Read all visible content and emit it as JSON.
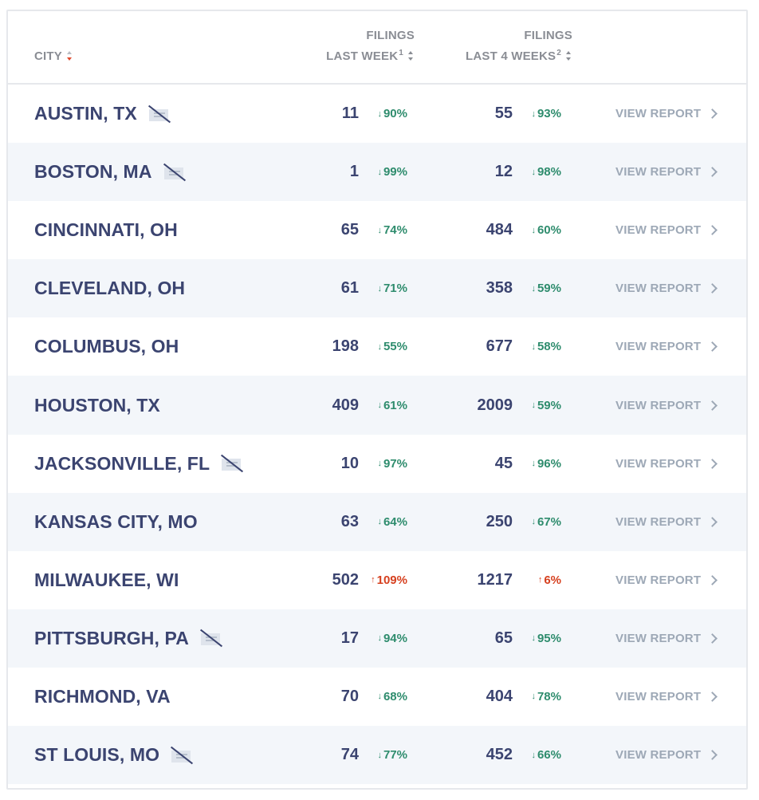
{
  "header": {
    "city_label": "CITY",
    "col1_line1": "FILINGS",
    "col1_line2": "LAST WEEK",
    "col1_sup": "1",
    "col2_line1": "FILINGS",
    "col2_line2": "LAST 4 WEEKS",
    "col2_sup": "2"
  },
  "colors": {
    "city_text": "#3b4470",
    "decrease": "#2e8c6d",
    "increase": "#d6401f",
    "link": "#9da8b6",
    "header_text": "#8a8d94",
    "alt_row": "#f3f6fa"
  },
  "rows": [
    {
      "city": "AUSTIN, TX",
      "no_data_icon": true,
      "last_week": "11",
      "last_week_change": "90%",
      "last_week_dir": "down",
      "last_4_weeks": "55",
      "last_4_weeks_change": "93%",
      "last_4_weeks_dir": "down",
      "link": "VIEW REPORT"
    },
    {
      "city": "BOSTON, MA",
      "no_data_icon": true,
      "last_week": "1",
      "last_week_change": "99%",
      "last_week_dir": "down",
      "last_4_weeks": "12",
      "last_4_weeks_change": "98%",
      "last_4_weeks_dir": "down",
      "link": "VIEW REPORT"
    },
    {
      "city": "CINCINNATI, OH",
      "no_data_icon": false,
      "last_week": "65",
      "last_week_change": "74%",
      "last_week_dir": "down",
      "last_4_weeks": "484",
      "last_4_weeks_change": "60%",
      "last_4_weeks_dir": "down",
      "link": "VIEW REPORT"
    },
    {
      "city": "CLEVELAND, OH",
      "no_data_icon": false,
      "last_week": "61",
      "last_week_change": "71%",
      "last_week_dir": "down",
      "last_4_weeks": "358",
      "last_4_weeks_change": "59%",
      "last_4_weeks_dir": "down",
      "link": "VIEW REPORT"
    },
    {
      "city": "COLUMBUS, OH",
      "no_data_icon": false,
      "last_week": "198",
      "last_week_change": "55%",
      "last_week_dir": "down",
      "last_4_weeks": "677",
      "last_4_weeks_change": "58%",
      "last_4_weeks_dir": "down",
      "link": "VIEW REPORT"
    },
    {
      "city": "HOUSTON, TX",
      "no_data_icon": false,
      "last_week": "409",
      "last_week_change": "61%",
      "last_week_dir": "down",
      "last_4_weeks": "2009",
      "last_4_weeks_change": "59%",
      "last_4_weeks_dir": "down",
      "link": "VIEW REPORT"
    },
    {
      "city": "JACKSONVILLE, FL",
      "no_data_icon": true,
      "last_week": "10",
      "last_week_change": "97%",
      "last_week_dir": "down",
      "last_4_weeks": "45",
      "last_4_weeks_change": "96%",
      "last_4_weeks_dir": "down",
      "link": "VIEW REPORT"
    },
    {
      "city": "KANSAS CITY, MO",
      "no_data_icon": false,
      "last_week": "63",
      "last_week_change": "64%",
      "last_week_dir": "down",
      "last_4_weeks": "250",
      "last_4_weeks_change": "67%",
      "last_4_weeks_dir": "down",
      "link": "VIEW REPORT"
    },
    {
      "city": "MILWAUKEE, WI",
      "no_data_icon": false,
      "last_week": "502",
      "last_week_change": "109%",
      "last_week_dir": "up",
      "last_4_weeks": "1217",
      "last_4_weeks_change": "6%",
      "last_4_weeks_dir": "up",
      "link": "VIEW REPORT"
    },
    {
      "city": "PITTSBURGH, PA",
      "no_data_icon": true,
      "last_week": "17",
      "last_week_change": "94%",
      "last_week_dir": "down",
      "last_4_weeks": "65",
      "last_4_weeks_change": "95%",
      "last_4_weeks_dir": "down",
      "link": "VIEW REPORT"
    },
    {
      "city": "RICHMOND, VA",
      "no_data_icon": false,
      "last_week": "70",
      "last_week_change": "68%",
      "last_week_dir": "down",
      "last_4_weeks": "404",
      "last_4_weeks_change": "78%",
      "last_4_weeks_dir": "down",
      "link": "VIEW REPORT"
    },
    {
      "city": "ST LOUIS, MO",
      "no_data_icon": true,
      "last_week": "74",
      "last_week_change": "77%",
      "last_week_dir": "down",
      "last_4_weeks": "452",
      "last_4_weeks_change": "66%",
      "last_4_weeks_dir": "down",
      "link": "VIEW REPORT"
    }
  ]
}
